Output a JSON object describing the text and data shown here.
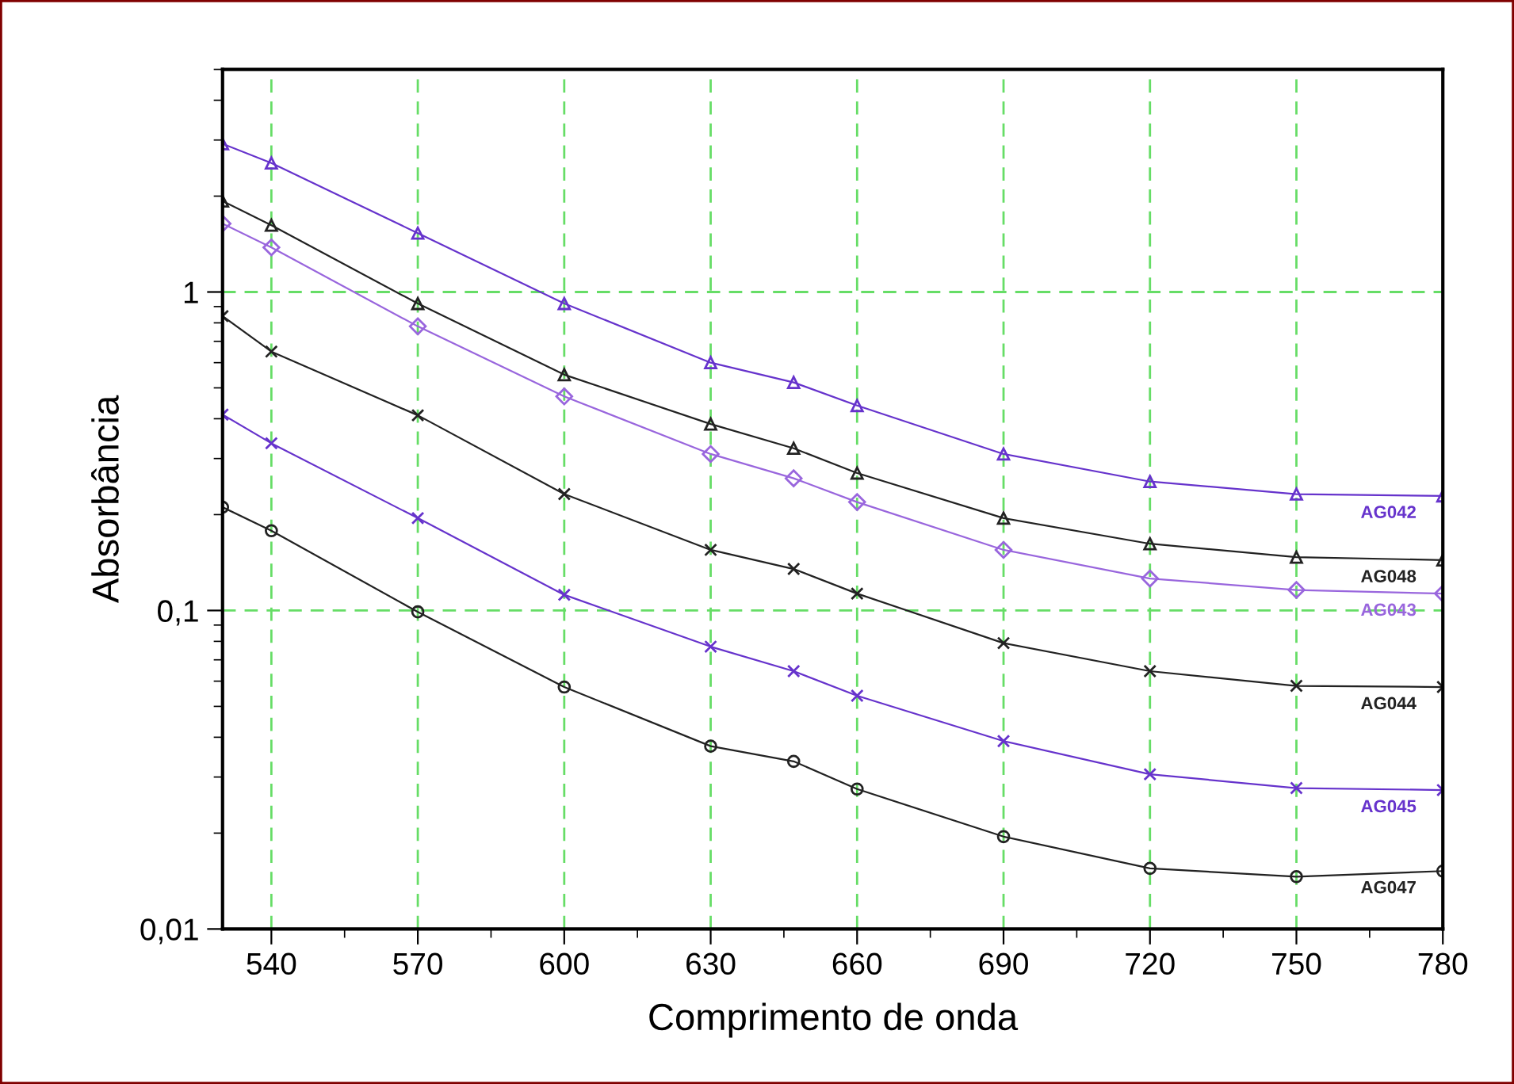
{
  "chart_data": {
    "type": "line",
    "xlabel": "Comprimento de onda",
    "ylabel": "Absorbância",
    "x": [
      530,
      540,
      570,
      600,
      630,
      647,
      660,
      690,
      720,
      750,
      780
    ],
    "series": [
      {
        "name": "AG042",
        "color": "#6633cc",
        "marker": "triangle",
        "values": [
          2.92,
          2.54,
          1.53,
          0.92,
          0.6,
          0.52,
          0.44,
          0.31,
          0.254,
          0.232,
          0.229
        ]
      },
      {
        "name": "AG048",
        "color": "#222222",
        "marker": "triangle",
        "values": [
          1.93,
          1.62,
          0.92,
          0.55,
          0.385,
          0.323,
          0.27,
          0.195,
          0.162,
          0.147,
          0.144
        ]
      },
      {
        "name": "AG043",
        "color": "#9966dd",
        "marker": "diamond",
        "values": [
          1.64,
          1.38,
          0.78,
          0.47,
          0.31,
          0.26,
          0.219,
          0.155,
          0.126,
          0.116,
          0.113
        ]
      },
      {
        "name": "AG044",
        "color": "#222222",
        "marker": "cross",
        "values": [
          0.84,
          0.65,
          0.41,
          0.232,
          0.155,
          0.135,
          0.113,
          0.079,
          0.0645,
          0.058,
          0.0575
        ]
      },
      {
        "name": "AG045",
        "color": "#6633cc",
        "marker": "cross",
        "values": [
          0.412,
          0.335,
          0.195,
          0.112,
          0.077,
          0.0645,
          0.054,
          0.0389,
          0.0306,
          0.0277,
          0.0273
        ]
      },
      {
        "name": "AG047",
        "color": "#222222",
        "marker": "circle",
        "values": [
          0.211,
          0.178,
          0.099,
          0.0575,
          0.0375,
          0.0336,
          0.0275,
          0.0195,
          0.0155,
          0.0146,
          0.0152
        ]
      }
    ],
    "log": "y",
    "xlim": [
      530,
      780
    ],
    "xticks": [
      540,
      570,
      600,
      630,
      660,
      690,
      720,
      750,
      780
    ],
    "ylim": [
      0.01,
      5
    ],
    "yticks": [
      {
        "value": 0.01,
        "label": "0,01"
      },
      {
        "value": 0.1,
        "label": "0,1"
      },
      {
        "value": 1,
        "label": "1"
      }
    ],
    "grid": true,
    "line_style": "solid"
  }
}
